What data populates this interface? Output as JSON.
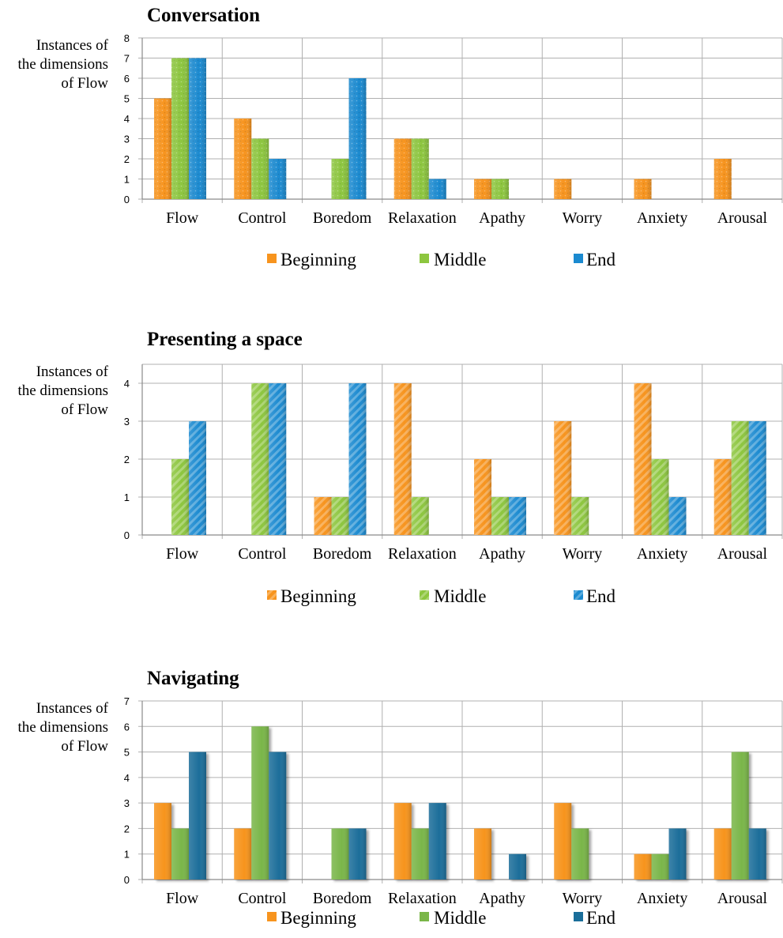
{
  "chart_data": [
    {
      "type": "bar",
      "title": "Conversation",
      "ylabel": [
        "Instances of",
        "the dimensions",
        "of Flow"
      ],
      "ylim": [
        0,
        8
      ],
      "yticks": [
        0,
        1,
        2,
        3,
        4,
        5,
        6,
        7,
        8
      ],
      "grid": true,
      "legend_position": "bottom",
      "categories": [
        "Flow",
        "Control",
        "Boredom",
        "Relaxation",
        "Apathy",
        "Worry",
        "Anxiety",
        "Arousal"
      ],
      "series": [
        {
          "name": "Beginning",
          "color": "#f7941e",
          "values": [
            5,
            4,
            0,
            3,
            1,
            1,
            1,
            2
          ]
        },
        {
          "name": "Middle",
          "color": "#8dc63f",
          "values": [
            7,
            3,
            2,
            3,
            1,
            0,
            0,
            0
          ]
        },
        {
          "name": "End",
          "color": "#1b8ad0",
          "values": [
            7,
            2,
            6,
            1,
            0,
            0,
            0,
            0
          ]
        }
      ]
    },
    {
      "type": "bar",
      "title": "Presenting a space",
      "ylabel": [
        "Instances of",
        "the dimensions",
        "of Flow"
      ],
      "ylim": [
        0,
        4.5
      ],
      "yticks": [
        0,
        1,
        2,
        3,
        4
      ],
      "grid": true,
      "legend_position": "bottom",
      "categories": [
        "Flow",
        "Control",
        "Boredom",
        "Relaxation",
        "Apathy",
        "Worry",
        "Anxiety",
        "Arousal"
      ],
      "series": [
        {
          "name": "Beginning",
          "color": "#f7941e",
          "values": [
            0,
            0,
            1,
            4,
            2,
            3,
            4,
            2
          ]
        },
        {
          "name": "Middle",
          "color": "#8dc63f",
          "values": [
            2,
            4,
            1,
            1,
            1,
            1,
            2,
            3
          ]
        },
        {
          "name": "End",
          "color": "#1b8ad0",
          "values": [
            3,
            4,
            4,
            0,
            1,
            0,
            1,
            3
          ]
        }
      ]
    },
    {
      "type": "bar",
      "title": "Navigating",
      "ylabel": [
        "Instances of",
        "the dimensions",
        "of Flow"
      ],
      "ylim": [
        0,
        7
      ],
      "yticks": [
        0,
        1,
        2,
        3,
        4,
        5,
        6,
        7
      ],
      "grid": true,
      "legend_position": "bottom",
      "categories": [
        "Flow",
        "Control",
        "Boredom",
        "Relaxation",
        "Apathy",
        "Worry",
        "Anxiety",
        "Arousal"
      ],
      "series": [
        {
          "name": "Beginning",
          "color": "#f7941e",
          "values": [
            3,
            2,
            0,
            3,
            2,
            3,
            1,
            2
          ]
        },
        {
          "name": "Middle",
          "color": "#7ab648",
          "values": [
            2,
            6,
            2,
            2,
            0,
            2,
            1,
            5
          ]
        },
        {
          "name": "End",
          "color": "#1a6e9a",
          "values": [
            5,
            5,
            2,
            3,
            1,
            0,
            2,
            2
          ]
        }
      ]
    }
  ]
}
